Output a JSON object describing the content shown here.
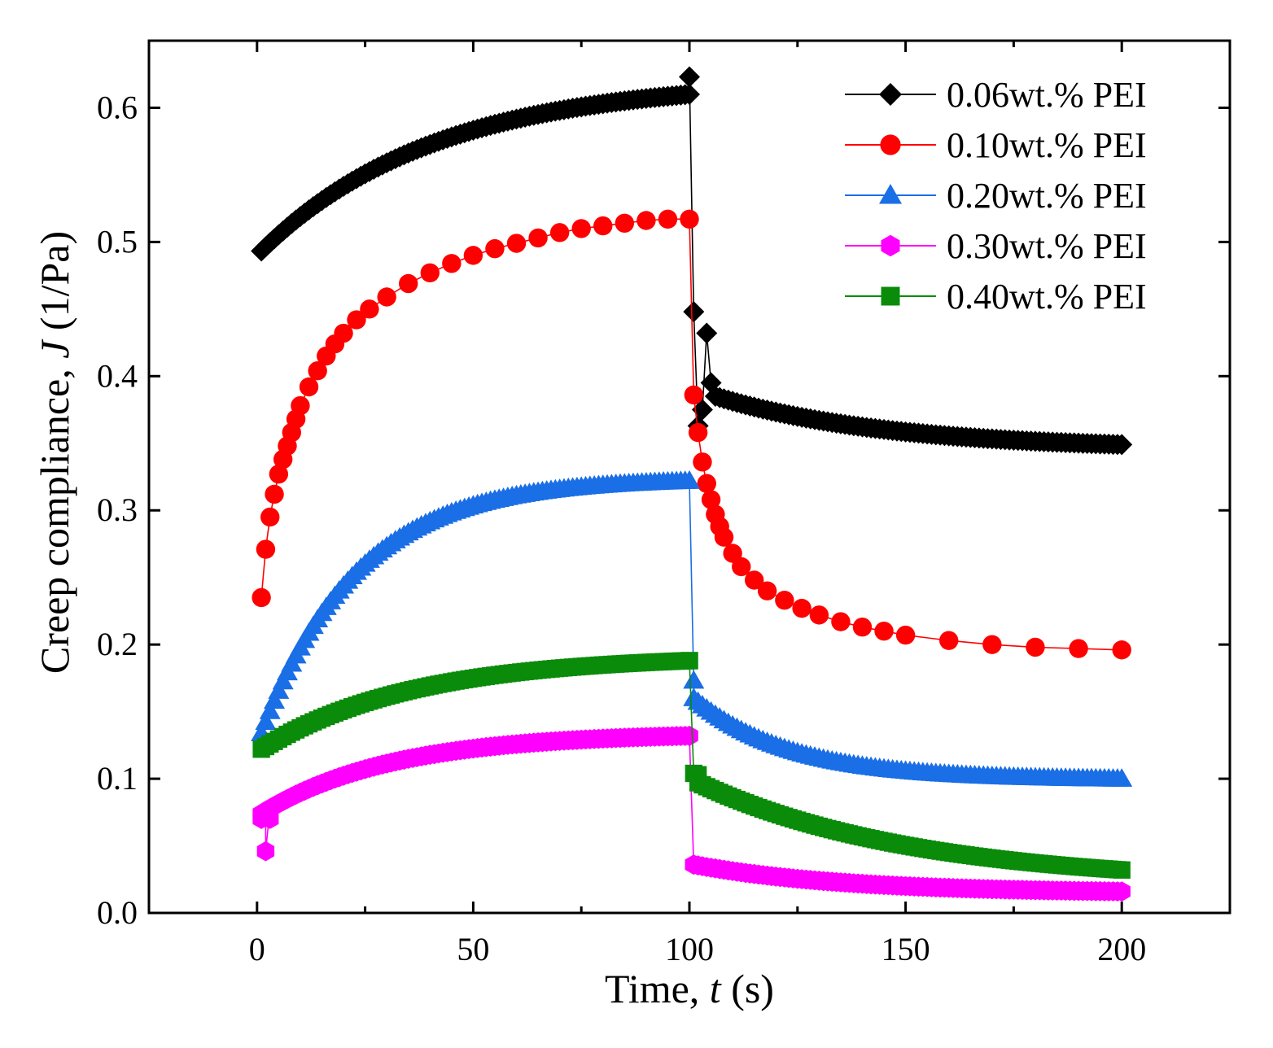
{
  "chart_data": {
    "type": "line",
    "title": "",
    "xlabel": "Time, t (s)",
    "xlabel_parts": {
      "prefix": "Time, ",
      "var": "t",
      "suffix": " (s)"
    },
    "ylabel": "Creep compliance, J (1/Pa)",
    "ylabel_parts": {
      "prefix": "Creep compliance, ",
      "var": "J",
      "suffix": " (1/Pa)"
    },
    "xlim": [
      -25,
      225
    ],
    "ylim": [
      0,
      0.65
    ],
    "xticks": [
      0,
      50,
      100,
      150,
      200
    ],
    "xtick_labels": [
      "0",
      "50",
      "100",
      "150",
      "200"
    ],
    "yticks": [
      0.0,
      0.1,
      0.2,
      0.3,
      0.4,
      0.5,
      0.6
    ],
    "ytick_labels": [
      "0.0",
      "0.1",
      "0.2",
      "0.3",
      "0.4",
      "0.5",
      "0.6"
    ],
    "grid": false,
    "legend_position": "top-right",
    "series": [
      {
        "name": "0.06wt.% PEI",
        "color": "#000000",
        "marker": "diamond",
        "creep": {
          "start": 0.49,
          "end": 0.61,
          "tau": 40
        },
        "recovery": {
          "start": 0.385,
          "end": 0.349,
          "tau": 40,
          "t_start": 106
        },
        "extra_points": [
          [
            100,
            0.623
          ],
          [
            101,
            0.448
          ],
          [
            102,
            0.363
          ],
          [
            103,
            0.375
          ],
          [
            104,
            0.432
          ],
          [
            105,
            0.395
          ]
        ]
      },
      {
        "name": "0.10wt.% PEI",
        "color": "#ff0000",
        "marker": "circle",
        "creep_points": [
          [
            1,
            0.235
          ],
          [
            2,
            0.271
          ],
          [
            3,
            0.295
          ],
          [
            4,
            0.312
          ],
          [
            5,
            0.327
          ],
          [
            6,
            0.338
          ],
          [
            7,
            0.348
          ],
          [
            8,
            0.358
          ],
          [
            9,
            0.368
          ],
          [
            10,
            0.378
          ],
          [
            12,
            0.392
          ],
          [
            14,
            0.404
          ],
          [
            16,
            0.415
          ],
          [
            18,
            0.424
          ],
          [
            20,
            0.432
          ],
          [
            23,
            0.442
          ],
          [
            26,
            0.45
          ],
          [
            30,
            0.459
          ],
          [
            35,
            0.469
          ],
          [
            40,
            0.477
          ],
          [
            45,
            0.484
          ],
          [
            50,
            0.49
          ],
          [
            55,
            0.495
          ],
          [
            60,
            0.499
          ],
          [
            65,
            0.503
          ],
          [
            70,
            0.507
          ],
          [
            75,
            0.51
          ],
          [
            80,
            0.512
          ],
          [
            85,
            0.514
          ],
          [
            90,
            0.516
          ],
          [
            95,
            0.517
          ],
          [
            100,
            0.517
          ]
        ],
        "recovery_points": [
          [
            101,
            0.386
          ],
          [
            102,
            0.358
          ],
          [
            103,
            0.336
          ],
          [
            104,
            0.32
          ],
          [
            105,
            0.308
          ],
          [
            106,
            0.297
          ],
          [
            107,
            0.288
          ],
          [
            108,
            0.28
          ],
          [
            110,
            0.268
          ],
          [
            112,
            0.258
          ],
          [
            115,
            0.248
          ],
          [
            118,
            0.24
          ],
          [
            122,
            0.233
          ],
          [
            126,
            0.227
          ],
          [
            130,
            0.222
          ],
          [
            135,
            0.217
          ],
          [
            140,
            0.213
          ],
          [
            145,
            0.21
          ],
          [
            150,
            0.207
          ],
          [
            160,
            0.203
          ],
          [
            170,
            0.2
          ],
          [
            180,
            0.198
          ],
          [
            190,
            0.197
          ],
          [
            200,
            0.196
          ]
        ]
      },
      {
        "name": "0.20wt.% PEI",
        "color": "#1a6ee6",
        "marker": "triangle",
        "creep": {
          "start": 0.125,
          "end": 0.322,
          "tau": 22
        },
        "recovery": {
          "start": 0.16,
          "end": 0.1,
          "tau": 22,
          "t_start": 101
        },
        "extra_points": [
          [
            100,
            0.322
          ],
          [
            101,
            0.173
          ]
        ]
      },
      {
        "name": "0.30wt.% PEI",
        "color": "#ff00ff",
        "marker": "hexagon",
        "creep": {
          "start": 0.072,
          "end": 0.132,
          "tau": 30
        },
        "recovery": {
          "start": 0.036,
          "end": 0.016,
          "tau": 35,
          "t_start": 101
        },
        "extra_points": [
          [
            1,
            0.07
          ],
          [
            2,
            0.046
          ],
          [
            3,
            0.07
          ],
          [
            100,
            0.132
          ],
          [
            101,
            0.036
          ]
        ]
      },
      {
        "name": "0.40wt.% PEI",
        "color": "#0a8c0a",
        "marker": "square",
        "creep": {
          "start": 0.12,
          "end": 0.188,
          "tau": 35
        },
        "recovery": {
          "start": 0.097,
          "end": 0.032,
          "tau": 50,
          "t_start": 102
        },
        "extra_points": [
          [
            100,
            0.188
          ],
          [
            101,
            0.104
          ],
          [
            102,
            0.103
          ]
        ]
      }
    ]
  }
}
